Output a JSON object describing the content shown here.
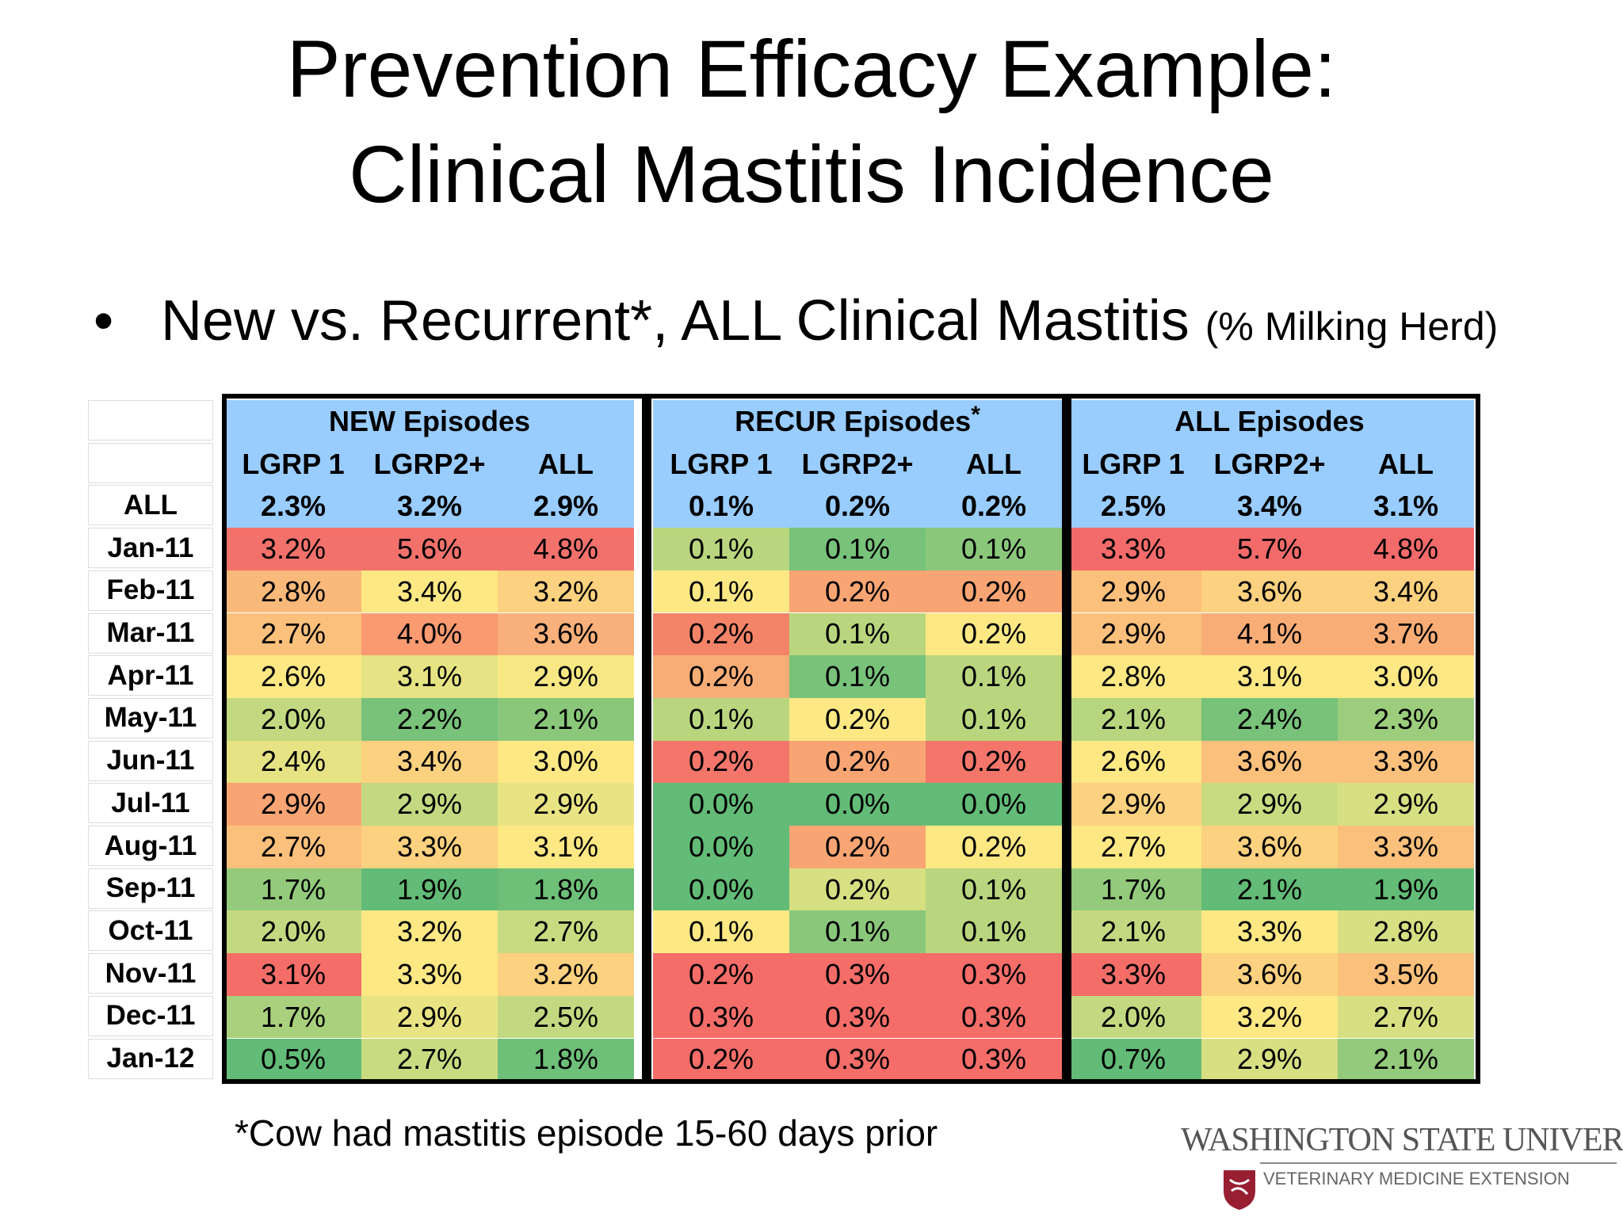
{
  "title_line1": "Prevention Efficacy Example:",
  "title_line2": "Clinical Mastitis Incidence",
  "bullet": {
    "symbol": "•",
    "text": "New vs. Recurrent*, ALL Clinical Mastitis",
    "unit": "(% Milking Herd)"
  },
  "table": {
    "groups": [
      {
        "label": "NEW Episodes",
        "superscript": ""
      },
      {
        "label": "RECUR Episodes",
        "superscript": "*"
      },
      {
        "label": "ALL Episodes",
        "superscript": ""
      }
    ],
    "subheaders": [
      "LGRP 1",
      "LGRP2+",
      "ALL"
    ],
    "summary": {
      "label": "ALL",
      "values": [
        "2.3%",
        "3.2%",
        "2.9%",
        "0.1%",
        "0.2%",
        "0.2%",
        "2.5%",
        "3.4%",
        "3.1%"
      ]
    },
    "rows": [
      {
        "label": "Jan-11",
        "values": [
          "3.2%",
          "5.6%",
          "4.8%",
          "0.1%",
          "0.1%",
          "0.1%",
          "3.3%",
          "5.7%",
          "4.8%"
        ]
      },
      {
        "label": "Feb-11",
        "values": [
          "2.8%",
          "3.4%",
          "3.2%",
          "0.1%",
          "0.2%",
          "0.2%",
          "2.9%",
          "3.6%",
          "3.4%"
        ]
      },
      {
        "label": "Mar-11",
        "values": [
          "2.7%",
          "4.0%",
          "3.6%",
          "0.2%",
          "0.1%",
          "0.2%",
          "2.9%",
          "4.1%",
          "3.7%"
        ]
      },
      {
        "label": "Apr-11",
        "values": [
          "2.6%",
          "3.1%",
          "2.9%",
          "0.2%",
          "0.1%",
          "0.1%",
          "2.8%",
          "3.1%",
          "3.0%"
        ]
      },
      {
        "label": "May-11",
        "values": [
          "2.0%",
          "2.2%",
          "2.1%",
          "0.1%",
          "0.2%",
          "0.1%",
          "2.1%",
          "2.4%",
          "2.3%"
        ]
      },
      {
        "label": "Jun-11",
        "values": [
          "2.4%",
          "3.4%",
          "3.0%",
          "0.2%",
          "0.2%",
          "0.2%",
          "2.6%",
          "3.6%",
          "3.3%"
        ]
      },
      {
        "label": "Jul-11",
        "values": [
          "2.9%",
          "2.9%",
          "2.9%",
          "0.0%",
          "0.0%",
          "0.0%",
          "2.9%",
          "2.9%",
          "2.9%"
        ]
      },
      {
        "label": "Aug-11",
        "values": [
          "2.7%",
          "3.3%",
          "3.1%",
          "0.0%",
          "0.2%",
          "0.2%",
          "2.7%",
          "3.6%",
          "3.3%"
        ]
      },
      {
        "label": "Sep-11",
        "values": [
          "1.7%",
          "1.9%",
          "1.8%",
          "0.0%",
          "0.2%",
          "0.1%",
          "1.7%",
          "2.1%",
          "1.9%"
        ]
      },
      {
        "label": "Oct-11",
        "values": [
          "2.0%",
          "3.2%",
          "2.7%",
          "0.1%",
          "0.1%",
          "0.1%",
          "2.1%",
          "3.3%",
          "2.8%"
        ]
      },
      {
        "label": "Nov-11",
        "values": [
          "3.1%",
          "3.3%",
          "3.2%",
          "0.2%",
          "0.3%",
          "0.3%",
          "3.3%",
          "3.6%",
          "3.5%"
        ]
      },
      {
        "label": "Dec-11",
        "values": [
          "1.7%",
          "2.9%",
          "2.5%",
          "0.3%",
          "0.3%",
          "0.3%",
          "2.0%",
          "3.2%",
          "2.7%"
        ]
      },
      {
        "label": "Jan-12",
        "values": [
          "0.5%",
          "2.7%",
          "1.8%",
          "0.2%",
          "0.3%",
          "0.3%",
          "0.7%",
          "2.9%",
          "2.1%"
        ]
      }
    ],
    "cell_colors": [
      [
        "#f2716b",
        "#f2716b",
        "#f2716b",
        "#b9d67e",
        "#78c27a",
        "#8ac77b",
        "#f26b6a",
        "#f26b6a",
        "#f26b6a"
      ],
      [
        "#f9b97a",
        "#fde884",
        "#fcd17f",
        "#fde884",
        "#f9a573",
        "#f9a573",
        "#fbc07b",
        "#fcd17f",
        "#fcd17f"
      ],
      [
        "#fbc07b",
        "#f99a71",
        "#f9b07a",
        "#f48468",
        "#b9d67e",
        "#fde884",
        "#fbc07b",
        "#f9ad76",
        "#f9ad76"
      ],
      [
        "#fde884",
        "#e5e383",
        "#f8e884",
        "#f9ad76",
        "#78c27a",
        "#b9d67e",
        "#fde884",
        "#fde884",
        "#fde884"
      ],
      [
        "#c3d981",
        "#78c27a",
        "#8ac77b",
        "#b9d67e",
        "#fde884",
        "#b9d67e",
        "#b7d67f",
        "#78c27a",
        "#9ccd7d"
      ],
      [
        "#e5e383",
        "#fcd17f",
        "#fde884",
        "#f4766a",
        "#f9a573",
        "#f4766a",
        "#fde884",
        "#fbc07b",
        "#fbc07b"
      ],
      [
        "#f9a573",
        "#c3d981",
        "#e9e483",
        "#62bb76",
        "#62bb76",
        "#62bb76",
        "#fcd17f",
        "#c9db81",
        "#d6df82"
      ],
      [
        "#fbc07b",
        "#fcd17f",
        "#fde884",
        "#62bb76",
        "#f9a573",
        "#fde884",
        "#fde884",
        "#fcd17f",
        "#fbc07b"
      ],
      [
        "#93ca7c",
        "#62bb76",
        "#6ebf78",
        "#62bb76",
        "#d6df82",
        "#b9d67e",
        "#93ca7c",
        "#62bb76",
        "#62bb76"
      ],
      [
        "#c3d981",
        "#fde884",
        "#c9db81",
        "#fde884",
        "#8ac77b",
        "#b9d67e",
        "#c3d981",
        "#fde884",
        "#d6df82"
      ],
      [
        "#f46d68",
        "#fde884",
        "#fcd17f",
        "#f46d68",
        "#f46d68",
        "#f46d68",
        "#f46d68",
        "#fcd17f",
        "#fbc07b"
      ],
      [
        "#a8d07d",
        "#e9e483",
        "#c3d981",
        "#f46d68",
        "#f46d68",
        "#f46d68",
        "#c3d981",
        "#fde884",
        "#d6df82"
      ],
      [
        "#62bb76",
        "#c9db81",
        "#6ebf78",
        "#f46d68",
        "#f46d68",
        "#f46d68",
        "#62bb76",
        "#d6df82",
        "#93ca7c"
      ]
    ]
  },
  "footnote": "*Cow had mastitis episode 15-60  days prior",
  "logo": {
    "name": "WASHINGTON STATE UNIVERSITY",
    "subtitle": "VETERINARY MEDICINE EXTENSION",
    "seal_color": "#981e32"
  }
}
